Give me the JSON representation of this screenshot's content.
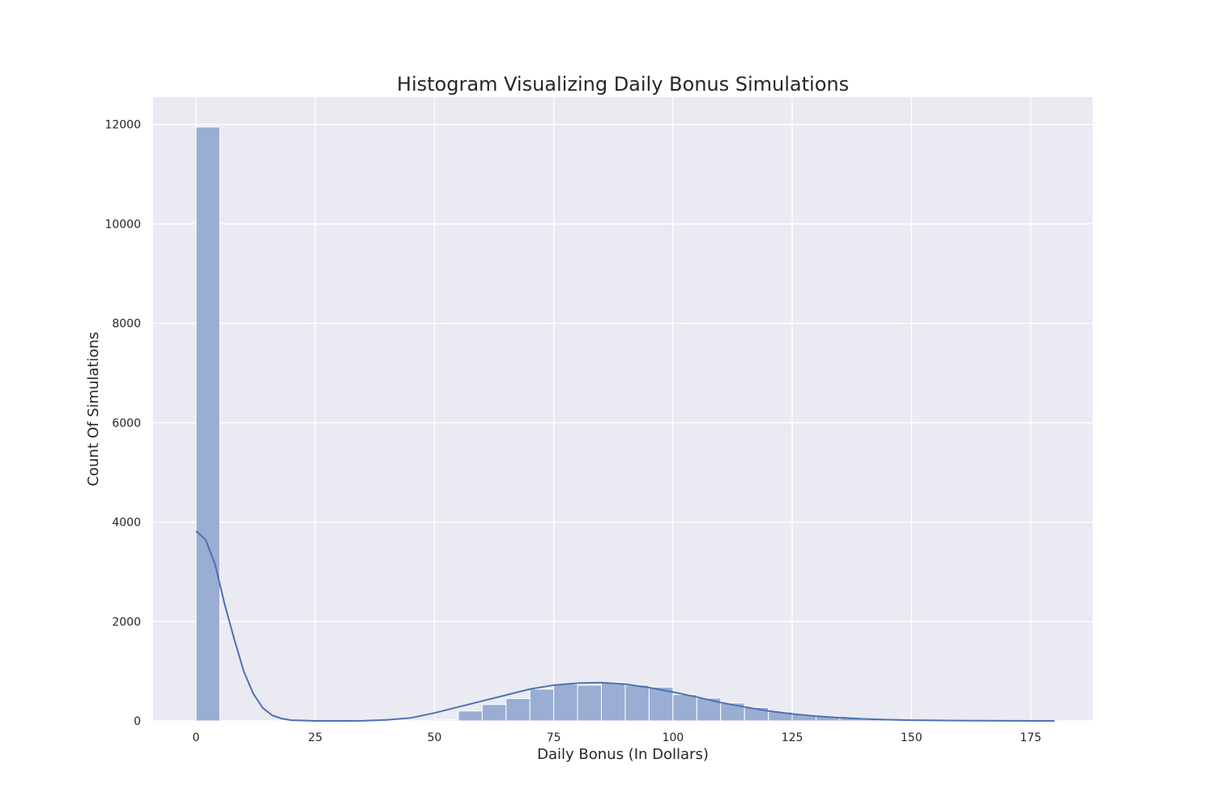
{
  "chart_data": {
    "type": "bar",
    "title": "Histogram Visualizing Daily Bonus Simulations",
    "xlabel": "Daily Bonus (In Dollars)",
    "ylabel": "Count Of Simulations",
    "xlim": [
      -9,
      188
    ],
    "ylim": [
      0,
      12550
    ],
    "x_ticks": [
      0,
      25,
      50,
      75,
      100,
      125,
      150,
      175
    ],
    "y_ticks": [
      0,
      2000,
      4000,
      6000,
      8000,
      10000,
      12000
    ],
    "grid": true,
    "legend": "none",
    "bin_width": 5,
    "bins": [
      {
        "start": 0,
        "count": 11950
      },
      {
        "start": 5,
        "count": 0
      },
      {
        "start": 10,
        "count": 0
      },
      {
        "start": 15,
        "count": 0
      },
      {
        "start": 20,
        "count": 0
      },
      {
        "start": 25,
        "count": 0
      },
      {
        "start": 30,
        "count": 0
      },
      {
        "start": 35,
        "count": 0
      },
      {
        "start": 40,
        "count": 0
      },
      {
        "start": 45,
        "count": 0
      },
      {
        "start": 50,
        "count": 20
      },
      {
        "start": 55,
        "count": 200
      },
      {
        "start": 60,
        "count": 330
      },
      {
        "start": 65,
        "count": 450
      },
      {
        "start": 70,
        "count": 640
      },
      {
        "start": 75,
        "count": 740
      },
      {
        "start": 80,
        "count": 720
      },
      {
        "start": 85,
        "count": 770
      },
      {
        "start": 90,
        "count": 720
      },
      {
        "start": 95,
        "count": 680
      },
      {
        "start": 100,
        "count": 530
      },
      {
        "start": 105,
        "count": 460
      },
      {
        "start": 110,
        "count": 360
      },
      {
        "start": 115,
        "count": 270
      },
      {
        "start": 120,
        "count": 180
      },
      {
        "start": 125,
        "count": 130
      },
      {
        "start": 130,
        "count": 90
      },
      {
        "start": 135,
        "count": 60
      },
      {
        "start": 140,
        "count": 30
      },
      {
        "start": 145,
        "count": 20
      },
      {
        "start": 150,
        "count": 10
      },
      {
        "start": 155,
        "count": 8
      },
      {
        "start": 160,
        "count": 5
      },
      {
        "start": 165,
        "count": 3
      },
      {
        "start": 170,
        "count": 2
      },
      {
        "start": 175,
        "count": 1
      }
    ],
    "kde": {
      "x": [
        0,
        2,
        4,
        6,
        8,
        10,
        12,
        14,
        16,
        18,
        20,
        25,
        30,
        35,
        40,
        45,
        50,
        55,
        60,
        65,
        70,
        75,
        80,
        85,
        90,
        95,
        100,
        105,
        110,
        115,
        120,
        125,
        130,
        135,
        140,
        145,
        150,
        155,
        160,
        165,
        170,
        175,
        180
      ],
      "y": [
        3820,
        3650,
        3150,
        2350,
        1650,
        1000,
        550,
        260,
        110,
        45,
        15,
        0,
        0,
        3,
        20,
        60,
        160,
        280,
        400,
        520,
        640,
        720,
        760,
        770,
        740,
        670,
        580,
        480,
        370,
        280,
        200,
        140,
        95,
        65,
        40,
        25,
        15,
        10,
        6,
        4,
        2,
        1,
        0
      ]
    },
    "colors": {
      "bar_fill": "#9aaed3",
      "kde_line": "#4c72b0",
      "plot_background": "#eaeaf2",
      "grid": "#ffffff"
    }
  }
}
